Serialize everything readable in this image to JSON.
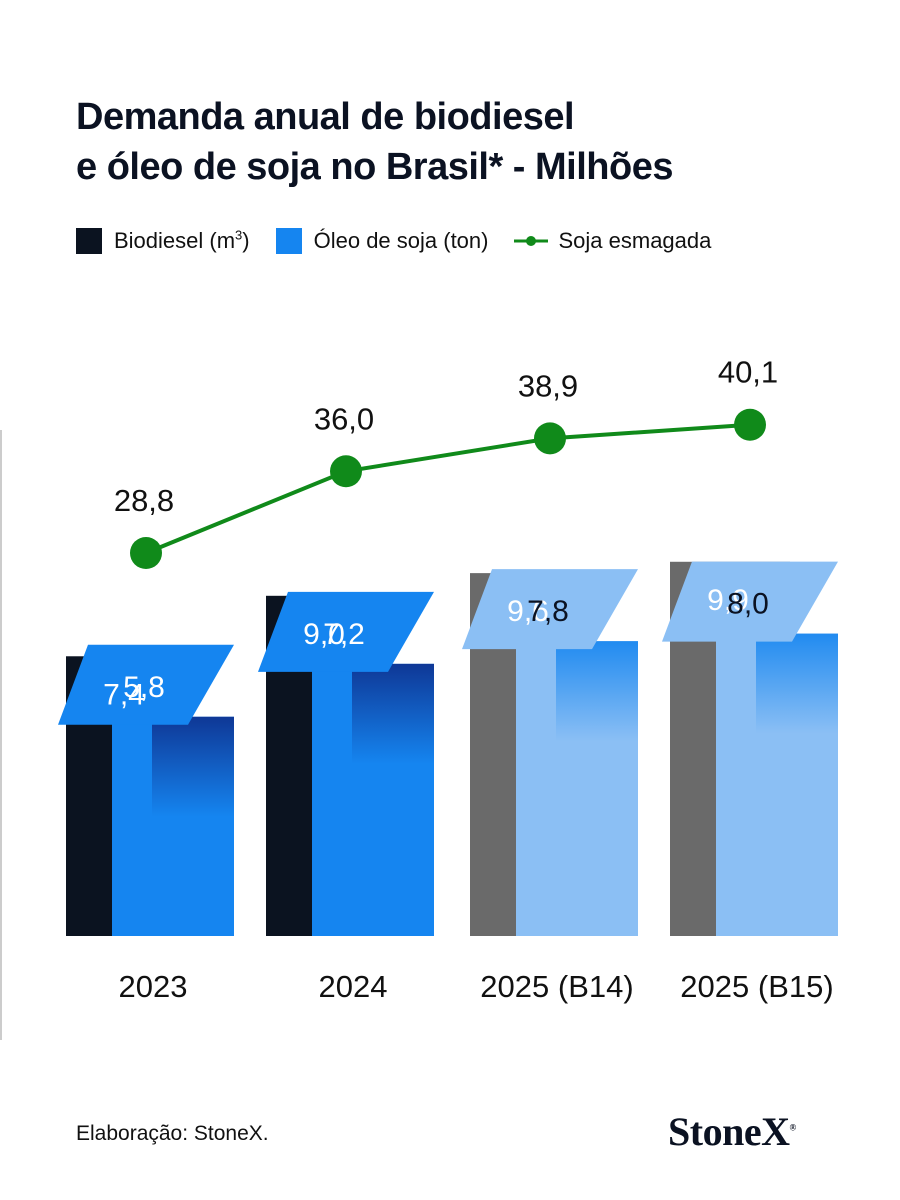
{
  "title": {
    "line1": "Demanda anual de biodiesel",
    "line2": "e óleo de soja no Brasil* - Milhões"
  },
  "legend": {
    "biodiesel": "Biodiesel (m",
    "biodiesel_sup": "3",
    "biodiesel_close": ")",
    "oleo": "Óleo de soja (ton)",
    "soja": "Soja esmagada"
  },
  "colors": {
    "biodiesel_actual": "#0b1320",
    "biodiesel_projected": "#6a6a6a",
    "oleo_actual": "#1585f0",
    "oleo_projected": "#8bbff4",
    "oleo_tab_dark": "#0e2f8c",
    "line": "#108a1a"
  },
  "chart_data": {
    "type": "bar",
    "categories": [
      "2023",
      "2024",
      "2025 (B14)",
      "2025 (B15)"
    ],
    "series": [
      {
        "name": "Biodiesel (m³)",
        "kind": "bar",
        "values": [
          7.4,
          9.0,
          9.6,
          9.9
        ],
        "labels": [
          "7,4",
          "9,0",
          "9,6",
          "9,9"
        ]
      },
      {
        "name": "Óleo de soja (ton)",
        "kind": "bar",
        "values": [
          5.8,
          7.2,
          7.8,
          8.0
        ],
        "labels": [
          "5,8",
          "7,2",
          "7,8",
          "8,0"
        ]
      },
      {
        "name": "Soja esmagada",
        "kind": "line",
        "values": [
          28.8,
          36.0,
          38.9,
          40.1
        ],
        "labels": [
          "28,8",
          "36,0",
          "38,9",
          "40,1"
        ]
      }
    ],
    "projected": [
      false,
      false,
      true,
      true
    ],
    "xlabel": "",
    "ylabel": ""
  },
  "footer": {
    "source": "Elaboração: StoneX.",
    "logo": "StoneX",
    "logo_mark": "®"
  }
}
